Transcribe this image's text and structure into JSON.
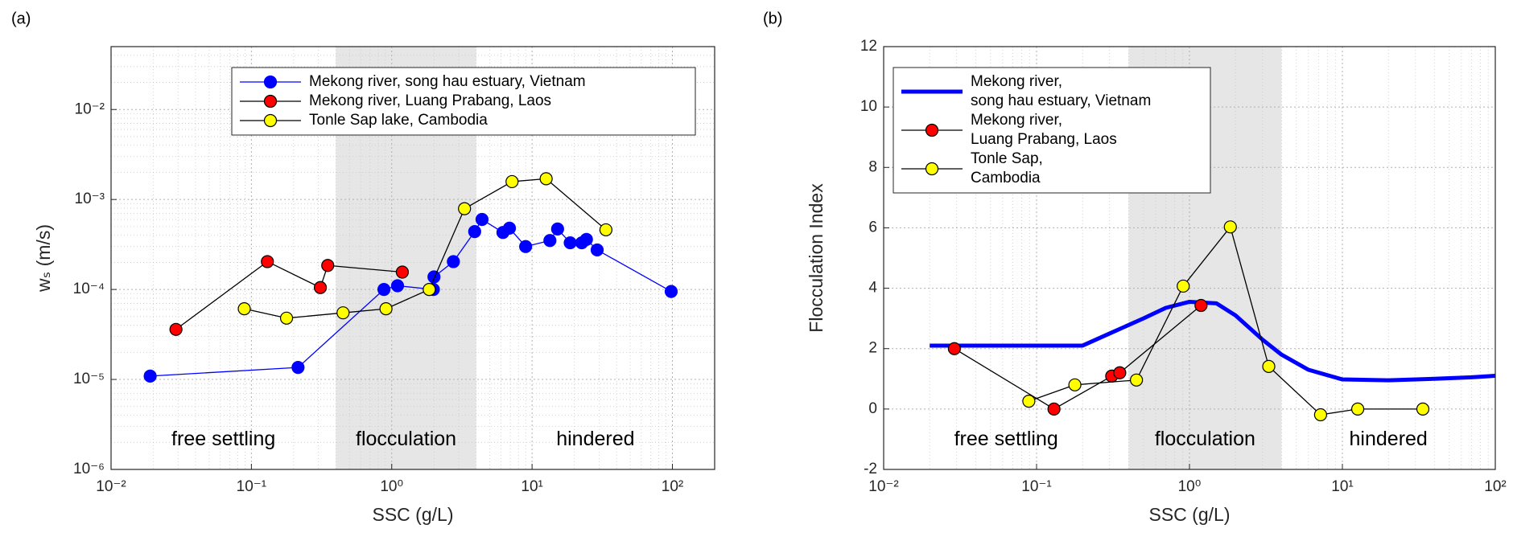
{
  "chart_data": [
    {
      "type": "line",
      "panel_label": "(a)",
      "xlabel": "SSC (g/L)",
      "ylabel": "wₛ (m/s)",
      "xscale": "log",
      "yscale": "log",
      "xlim": [
        0.01,
        200
      ],
      "ylim": [
        1e-06,
        0.05
      ],
      "xticks": [
        {
          "value": 0.01,
          "label": "10⁻²"
        },
        {
          "value": 0.1,
          "label": "10⁻¹"
        },
        {
          "value": 1,
          "label": "10⁰"
        },
        {
          "value": 10,
          "label": "10¹"
        },
        {
          "value": 100,
          "label": "10²"
        }
      ],
      "yticks": [
        {
          "value": 1e-06,
          "label": "10⁻⁶"
        },
        {
          "value": 1e-05,
          "label": "10⁻⁵"
        },
        {
          "value": 0.0001,
          "label": "10⁻⁴"
        },
        {
          "value": 0.001,
          "label": "10⁻³"
        },
        {
          "value": 0.01,
          "label": "10⁻²"
        }
      ],
      "grid": true,
      "shaded_region": [
        0.4,
        4
      ],
      "annotations": [
        "free settling",
        "flocculation",
        "hindered"
      ],
      "legend": "upper center",
      "series": [
        {
          "name": "Mekong river, song hau estuary, Vietnam",
          "color": "#0000ff",
          "marker": "o",
          "marker_color": "#0000ff",
          "x": [
            0.019,
            0.215,
            0.88,
            1.1,
            1.98,
            2.0,
            2.75,
            3.9,
            4.4,
            6.2,
            6.9,
            9.0,
            13.4,
            15.2,
            18.7,
            22.6,
            24.4,
            29.1,
            98
          ],
          "values": [
            1.09e-05,
            1.36e-05,
            0.0001,
            0.00011,
            0.0001,
            0.000138,
            0.000204,
            0.00044,
            0.0006,
            0.00043,
            0.00048,
            0.0003,
            0.00035,
            0.00047,
            0.00033,
            0.00033,
            0.00036,
            0.000275,
            9.5e-05
          ]
        },
        {
          "name": "Mekong river, Luang Prabang, Laos",
          "color": "#000000",
          "marker": "o",
          "marker_color": "#ff0000",
          "x": [
            0.029,
            0.13,
            0.31,
            0.35,
            1.19
          ],
          "values": [
            3.6e-05,
            0.000204,
            0.000105,
            0.000185,
            0.000156
          ]
        },
        {
          "name": "Tonle Sap lake, Cambodia",
          "color": "#000000",
          "marker": "o",
          "marker_color": "#ffff00",
          "x": [
            0.089,
            0.178,
            0.45,
            0.91,
            1.85,
            3.3,
            7.2,
            12.6,
            33.6
          ],
          "values": [
            6.1e-05,
            4.8e-05,
            5.5e-05,
            6.1e-05,
            0.0001,
            0.00079,
            0.00158,
            0.0017,
            0.00046
          ]
        }
      ]
    },
    {
      "type": "line",
      "panel_label": "(b)",
      "xlabel": "SSC (g/L)",
      "ylabel": "Flocculation Index",
      "xscale": "log",
      "yscale": "linear",
      "xlim": [
        0.01,
        100
      ],
      "ylim": [
        -2,
        12
      ],
      "xticks": [
        {
          "value": 0.01,
          "label": "10⁻²"
        },
        {
          "value": 0.1,
          "label": "10⁻¹"
        },
        {
          "value": 1,
          "label": "10⁰"
        },
        {
          "value": 10,
          "label": "10¹"
        },
        {
          "value": 100,
          "label": "10²"
        }
      ],
      "yticks": [
        -2,
        0,
        2,
        4,
        6,
        8,
        10,
        12
      ],
      "grid": true,
      "shaded_region": [
        0.4,
        4
      ],
      "annotations": [
        "free settling",
        "flocculation",
        "hindered"
      ],
      "legend": "upper left",
      "series": [
        {
          "name": "Mekong river,\nsong hau estuary, Vietnam",
          "color": "#0000ff",
          "marker": "none",
          "linewidth": 5,
          "x": [
            0.02,
            0.05,
            0.1,
            0.2,
            0.3,
            0.5,
            0.7,
            1,
            1.5,
            2,
            3,
            4,
            6,
            10,
            20,
            40,
            70,
            100
          ],
          "values": [
            2.1,
            2.1,
            2.1,
            2.1,
            2.5,
            3.0,
            3.35,
            3.55,
            3.5,
            3.1,
            2.3,
            1.8,
            1.3,
            0.98,
            0.95,
            1.0,
            1.05,
            1.1
          ]
        },
        {
          "name": "Mekong river,\nLuang Prabang, Laos",
          "color": "#000000",
          "marker": "o",
          "marker_color": "#ff0000",
          "x": [
            0.029,
            0.13,
            0.31,
            0.35,
            1.19
          ],
          "values": [
            2.0,
            0,
            1.09,
            1.2,
            3.43
          ]
        },
        {
          "name": "Tonle Sap,\nCambodia",
          "color": "#000000",
          "marker": "o",
          "marker_color": "#ffff00",
          "x": [
            0.089,
            0.178,
            0.45,
            0.91,
            1.85,
            3.3,
            7.2,
            12.6,
            33.6
          ],
          "values": [
            0.26,
            0.8,
            0.96,
            4.07,
            6.03,
            1.41,
            -0.19,
            0,
            0
          ]
        }
      ]
    }
  ]
}
